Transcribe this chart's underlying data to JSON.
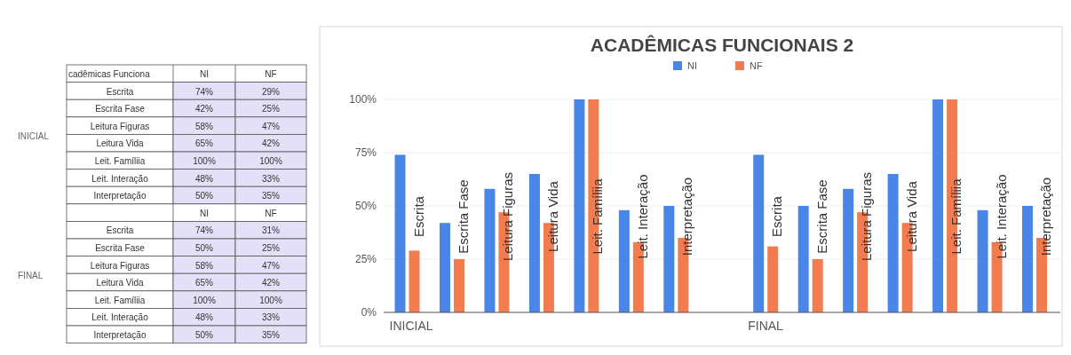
{
  "chart_data": [
    {
      "type": "other",
      "categories": [
        "Escrita",
        "Escrita Fase",
        "Leitura Figuras",
        "Leitura Vida",
        "Leit. Famíliia",
        "Leit. Interação",
        "Interpretação",
        null,
        "Escrita",
        "Escrita Fase",
        "Leitura Figuras",
        "Leitura Vida",
        "Leit. Famíliia",
        "Leit. Interação",
        "Interpretação"
      ],
      "series": [
        {
          "name": "NI",
          "values": [
            74,
            42,
            58,
            65,
            100,
            48,
            50,
            null,
            74,
            50,
            58,
            65,
            100,
            48,
            50
          ],
          "value_labels": [
            "74%",
            "42%",
            "58%",
            "65%",
            "100%",
            "48%",
            "50%",
            null,
            "74%",
            "50%",
            "58%",
            "65%",
            "100%",
            "48%",
            "50%"
          ]
        },
        {
          "name": "NF",
          "values": [
            29,
            25,
            47,
            42,
            100,
            33,
            35,
            null,
            31,
            25,
            47,
            42,
            100,
            33,
            35
          ],
          "value_labels": [
            "29%",
            "25%",
            "47%",
            "42%",
            "100%",
            "33%",
            "35%",
            null,
            "31%",
            "25%",
            "47%",
            "42%",
            "100%",
            "33%",
            "35%"
          ]
        }
      ],
      "annotations": [
        "INICIAL",
        "FINAL",
        "cadêmicas Funciona"
      ]
    },
    {
      "type": "bar",
      "title": "ACADÊMICAS FUNCIONAIS 2",
      "categories": [
        "Escrita",
        "Escrita Fase",
        "Leitura Figuras",
        "Leitura Vida",
        "Leit. Famíliia",
        "Leit. Interação",
        "Interpretação",
        null,
        "Escrita",
        "Escrita Fase",
        "Leitura Figuras",
        "Leitura Vida",
        "Leit. Famíliia",
        "Leit. Interação",
        "Interpretação"
      ],
      "series": [
        {
          "name": "NI",
          "color": "#4a86e8",
          "values": [
            74,
            42,
            58,
            65,
            100,
            48,
            50,
            null,
            74,
            50,
            58,
            65,
            100,
            48,
            50
          ]
        },
        {
          "name": "NF",
          "color": "#f27b50",
          "values": [
            29,
            25,
            47,
            42,
            100,
            33,
            35,
            null,
            31,
            25,
            47,
            42,
            100,
            33,
            35
          ]
        }
      ],
      "ylim": [
        0,
        100
      ],
      "yticks": [
        {
          "value": 0,
          "label": "0%"
        },
        {
          "value": 25,
          "label": "25%"
        },
        {
          "value": 50,
          "label": "50%"
        },
        {
          "value": 75,
          "label": "75%"
        },
        {
          "value": 100,
          "label": "100%"
        }
      ],
      "grid": "y",
      "legend": "top",
      "annotations": [
        "INICIAL",
        "FINAL"
      ]
    }
  ]
}
